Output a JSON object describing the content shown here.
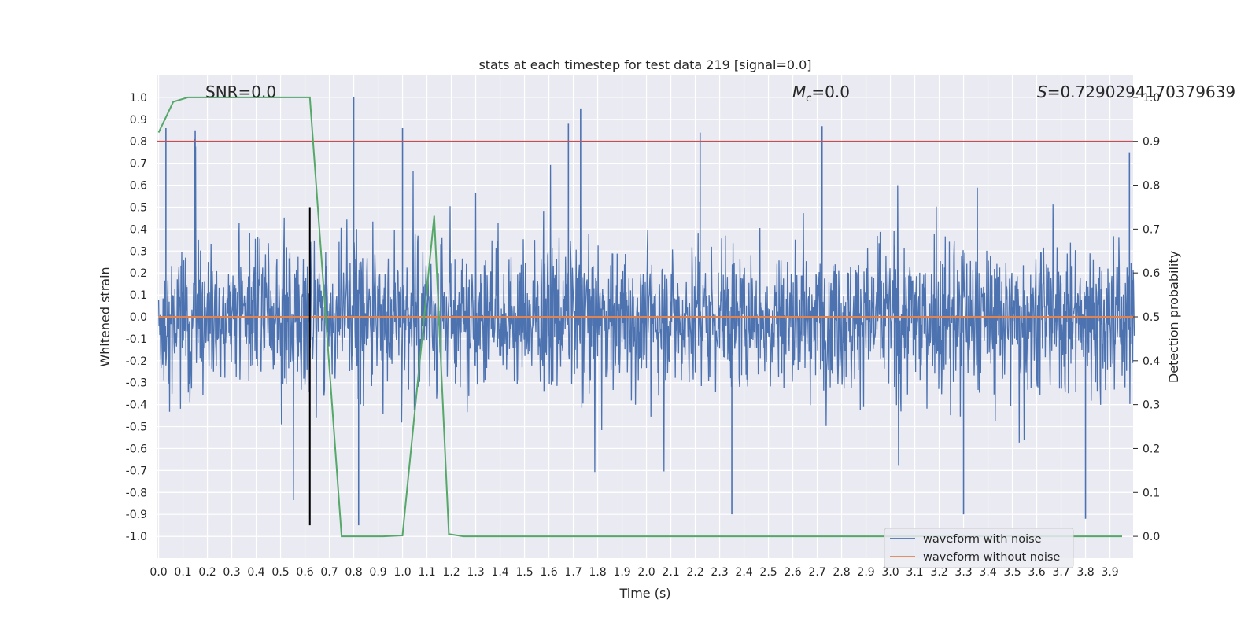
{
  "chart_data": {
    "type": "line",
    "title": "stats at each timestep for test data 219 [signal=0.0]",
    "xlabel": "Time (s)",
    "ylabel": "Whitened strain",
    "y2label": "Detection probability",
    "xlim": [
      -0.005,
      3.995
    ],
    "ylim": [
      -1.1,
      1.1
    ],
    "y2lim": [
      -0.05,
      1.05
    ],
    "grid": true,
    "legend_position": "lower-right",
    "annotations": {
      "snr": "SNR=0.0",
      "mc_symbol": "M",
      "mc_sub": "c",
      "mc_value": "=0.0",
      "s_symbol": "S",
      "s_value": "=0.7290294170379639"
    },
    "x_ticks": [
      "0.0",
      "0.1",
      "0.2",
      "0.3",
      "0.4",
      "0.5",
      "0.6",
      "0.7",
      "0.8",
      "0.9",
      "1.0",
      "1.1",
      "1.2",
      "1.3",
      "1.4",
      "1.5",
      "1.6",
      "1.7",
      "1.8",
      "1.9",
      "2.0",
      "2.1",
      "2.2",
      "2.3",
      "2.4",
      "2.5",
      "2.6",
      "2.7",
      "2.8",
      "2.9",
      "3.0",
      "3.1",
      "3.2",
      "3.3",
      "3.4",
      "3.5",
      "3.6",
      "3.7",
      "3.8",
      "3.9"
    ],
    "y_ticks": [
      "1.0",
      "0.9",
      "0.8",
      "0.7",
      "0.6",
      "0.5",
      "0.4",
      "0.3",
      "0.2",
      "0.1",
      "0.0",
      "-0.1",
      "-0.2",
      "-0.3",
      "-0.4",
      "-0.5",
      "-0.6",
      "-0.7",
      "-0.8",
      "-0.9",
      "-1.0"
    ],
    "y2_ticks": [
      "1.0",
      "0.9",
      "0.8",
      "0.7",
      "0.6",
      "0.5",
      "0.4",
      "0.3",
      "0.2",
      "0.1",
      "0.0"
    ],
    "series": [
      {
        "name": "waveform with noise",
        "color": "#4c72b0",
        "kind": "noise",
        "x_range": [
          0.0,
          4.0
        ],
        "typical_band": [
          -0.2,
          0.25
        ],
        "max_peak": 1.0,
        "min_peak": -0.95,
        "spikes": [
          [
            0.03,
            0.86
          ],
          [
            0.15,
            0.85
          ],
          [
            0.62,
            -0.92
          ],
          [
            0.8,
            1.0
          ],
          [
            0.82,
            -0.95
          ],
          [
            1.0,
            0.86
          ],
          [
            1.68,
            0.88
          ],
          [
            1.73,
            0.95
          ],
          [
            2.22,
            0.84
          ],
          [
            2.35,
            -0.9
          ],
          [
            2.72,
            0.87
          ],
          [
            3.3,
            -0.9
          ],
          [
            3.8,
            -0.92
          ],
          [
            3.98,
            0.75
          ]
        ]
      },
      {
        "name": "waveform without noise",
        "color": "#dd8452",
        "x": [
          0.0,
          4.0
        ],
        "y": [
          0.0,
          0.0
        ]
      },
      {
        "color": "#55a868",
        "axis": "right",
        "x": [
          0.0,
          0.06,
          0.12,
          0.2,
          0.3,
          0.4,
          0.5,
          0.62,
          0.75,
          0.8,
          0.92,
          1.0,
          1.13,
          1.19,
          1.25,
          1.5,
          2.0,
          2.5,
          3.0,
          3.5,
          3.95
        ],
        "y": [
          0.92,
          0.99,
          1.0,
          1.0,
          1.0,
          1.0,
          1.0,
          1.0,
          0.0,
          0.0,
          0.0,
          0.002,
          0.73,
          0.005,
          0.0,
          0.0,
          0.0,
          0.0,
          0.0,
          0.0,
          0.0
        ]
      },
      {
        "color": "#c44e52",
        "axis": "right",
        "kind": "threshold",
        "y": 0.9
      },
      {
        "color": "#000000",
        "kind": "vertical-marker",
        "x": 0.62,
        "y_range": [
          -0.95,
          0.5
        ]
      }
    ],
    "legend": [
      "waveform with noise",
      "waveform without noise"
    ]
  }
}
